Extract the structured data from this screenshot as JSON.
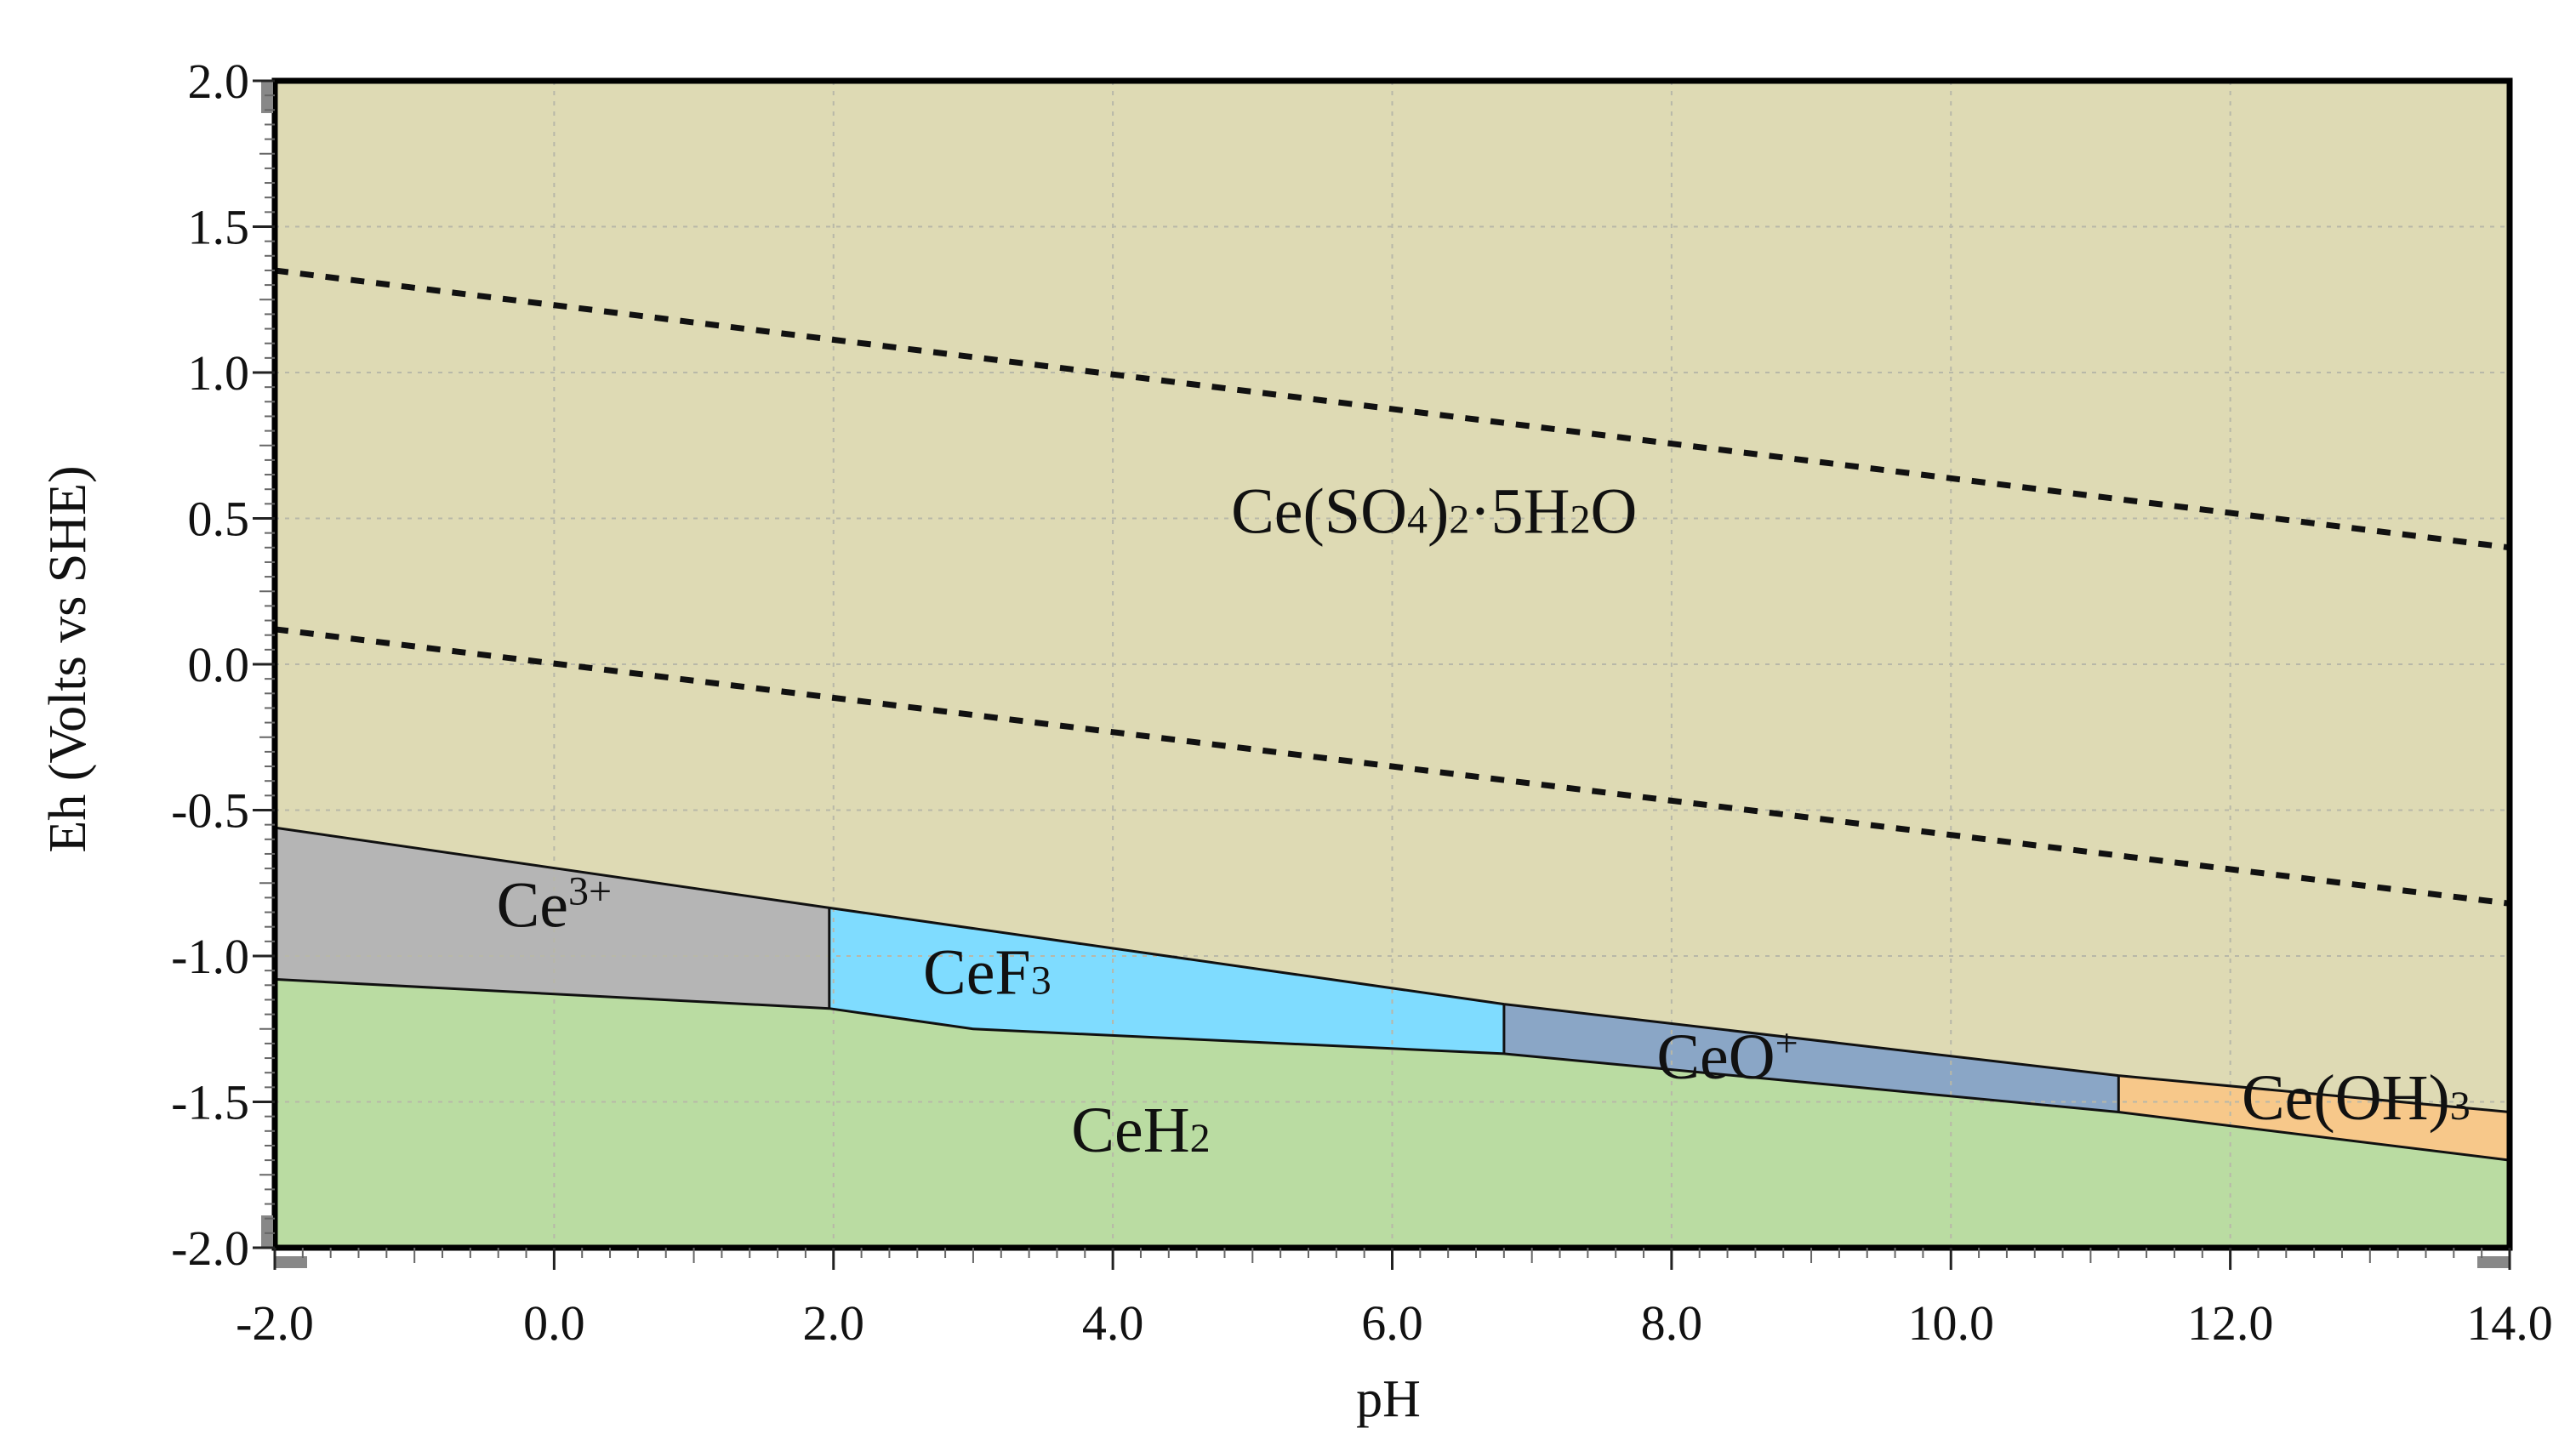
{
  "chart_data": {
    "type": "area",
    "title": "",
    "xlabel": "pH",
    "ylabel": "Eh (Volts vs SHE)",
    "xlim": [
      -2,
      14
    ],
    "ylim": [
      -2,
      2
    ],
    "xticks": [
      -2,
      0,
      2,
      4,
      6,
      8,
      10,
      12,
      14
    ],
    "yticks": [
      2,
      1.5,
      1,
      0.5,
      0,
      -0.5,
      -1,
      -1.5,
      -2
    ],
    "xtick_labels": [
      "-2.0",
      "0.0",
      "2.0",
      "4.0",
      "6.0",
      "8.0",
      "10.0",
      "12.0",
      "14.0"
    ],
    "ytick_labels": [
      "2.0",
      "1.5",
      "1.0",
      "0.5",
      "0.0",
      "-0.5",
      "-1.0",
      "-1.5",
      "-2.0"
    ],
    "grid": true,
    "colors": {
      "background_region": "#DEDAB4",
      "ce3": "#B5B5B5",
      "cef3": "#7FDCFF",
      "ceo": "#8AA6C6",
      "ceoh3": "#F7C88A",
      "ceh2": "#BADCA2",
      "grid": "#b8b8a8",
      "outline": "#111111"
    },
    "regions": [
      {
        "id": "ce-so4",
        "name": "Ce(SO4)2·5H2O",
        "color_key": "background_region",
        "polygon": [
          [
            -2,
            2
          ],
          [
            14,
            2
          ],
          [
            14,
            -1.535
          ],
          [
            11.2,
            -1.41
          ],
          [
            6.8,
            -1.165
          ],
          [
            1.97,
            -0.835
          ],
          [
            -2,
            -0.56
          ]
        ],
        "label_at": [
          6.3,
          0.45
        ]
      },
      {
        "id": "ce3",
        "name": "Ce³⁺",
        "color_key": "ce3",
        "polygon": [
          [
            -2,
            -0.56
          ],
          [
            1.97,
            -0.835
          ],
          [
            1.97,
            -1.18
          ],
          [
            -2,
            -1.08
          ]
        ],
        "label_at": [
          0,
          -0.9
        ]
      },
      {
        "id": "cef3",
        "name": "CeF₃",
        "color_key": "cef3",
        "polygon": [
          [
            1.97,
            -0.835
          ],
          [
            6.8,
            -1.165
          ],
          [
            6.8,
            -1.335
          ],
          [
            3,
            -1.25
          ],
          [
            1.97,
            -1.18
          ]
        ],
        "label_at": [
          3.1,
          -1.13
        ]
      },
      {
        "id": "ceo",
        "name": "CeO⁺",
        "color_key": "ceo",
        "polygon": [
          [
            6.8,
            -1.165
          ],
          [
            11.2,
            -1.41
          ],
          [
            11.2,
            -1.535
          ],
          [
            6.8,
            -1.335
          ]
        ],
        "label_at": [
          8.4,
          -1.42
        ]
      },
      {
        "id": "ceoh3",
        "name": "Ce(OH)₃",
        "color_key": "ceoh3",
        "polygon": [
          [
            11.2,
            -1.41
          ],
          [
            14,
            -1.535
          ],
          [
            14,
            -1.7
          ],
          [
            11.2,
            -1.535
          ]
        ],
        "label_at": [
          12.9,
          -1.56
        ]
      },
      {
        "id": "ceh2",
        "name": "CeH₂",
        "color_key": "ceh2",
        "polygon": [
          [
            -2,
            -1.08
          ],
          [
            1.97,
            -1.18
          ],
          [
            3,
            -1.25
          ],
          [
            6.8,
            -1.335
          ],
          [
            11.2,
            -1.535
          ],
          [
            14,
            -1.7
          ],
          [
            14,
            -2
          ],
          [
            -2,
            -2
          ]
        ],
        "label_at": [
          4.2,
          -1.67
        ]
      }
    ],
    "boundaries": [
      [
        [
          -2,
          -0.56
        ],
        [
          1.97,
          -0.835
        ],
        [
          6.8,
          -1.165
        ],
        [
          11.2,
          -1.41
        ],
        [
          14,
          -1.535
        ]
      ],
      [
        [
          -2,
          -1.08
        ],
        [
          1.97,
          -1.18
        ],
        [
          3,
          -1.25
        ],
        [
          6.8,
          -1.335
        ],
        [
          11.2,
          -1.535
        ],
        [
          14,
          -1.7
        ]
      ],
      [
        [
          1.97,
          -0.835
        ],
        [
          1.97,
          -1.18
        ]
      ],
      [
        [
          6.8,
          -1.165
        ],
        [
          6.8,
          -1.335
        ]
      ],
      [
        [
          11.2,
          -1.41
        ],
        [
          11.2,
          -1.535
        ]
      ]
    ],
    "water_lines": [
      {
        "name": "upper",
        "points": [
          [
            -2,
            1.35
          ],
          [
            14,
            0.4
          ]
        ]
      },
      {
        "name": "lower",
        "points": [
          [
            -2,
            0.12
          ],
          [
            14,
            -0.82
          ]
        ]
      }
    ],
    "labels": {
      "ce_so4": {
        "a": "Ce(SO",
        "s1": "4",
        "b": ")",
        "s2": "2",
        "c": "·5H",
        "s3": "2",
        "d": "O"
      },
      "ce3": {
        "a": "Ce",
        "sup": "3+"
      },
      "cef3": {
        "a": "CeF",
        "sub": "3"
      },
      "ceo": {
        "a": "CeO",
        "sup": "+"
      },
      "ceoh3": {
        "a": "Ce(OH)",
        "sub": "3"
      },
      "ceh2": {
        "a": "CeH",
        "sub": "2"
      }
    }
  }
}
